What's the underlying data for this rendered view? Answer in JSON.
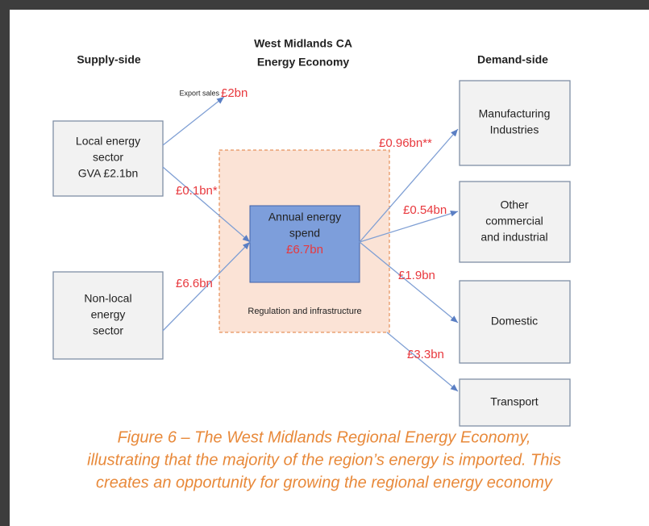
{
  "header": {
    "supply": "Supply-side",
    "title": [
      "West Midlands CA",
      "Energy Economy"
    ],
    "demand": "Demand-side"
  },
  "nodes": [
    {
      "label": [
        "Local energy",
        "sector",
        "GVA £2.1bn"
      ]
    },
    {
      "label": [
        "Non-local",
        "energy",
        "sector"
      ]
    },
    {
      "label": [
        "Annual energy",
        "spend"
      ],
      "value": "£6.7bn"
    },
    {
      "label": [
        "Manufacturing",
        "Industries"
      ]
    },
    {
      "label": [
        "Other",
        "commercial",
        "and industrial"
      ]
    },
    {
      "label": [
        "Domestic"
      ]
    },
    {
      "label": [
        "Transport"
      ]
    }
  ],
  "region": "Regulation and infrastructure",
  "flows": [
    {
      "note": "Export sales",
      "label": "£2bn"
    },
    {
      "label": "£0.1bn*"
    },
    {
      "label": "£6.6bn"
    },
    {
      "label": "£0.96bn**"
    },
    {
      "label": "£0.54bn"
    },
    {
      "label": "£1.9bn"
    },
    {
      "label": "£3.3bn"
    }
  ],
  "caption": [
    "Figure 6 – The West Midlands Regional Energy Economy,",
    "illustrating that the majority of the region’s energy is imported. This",
    "creates an opportunity for growing the regional energy economy"
  ]
}
